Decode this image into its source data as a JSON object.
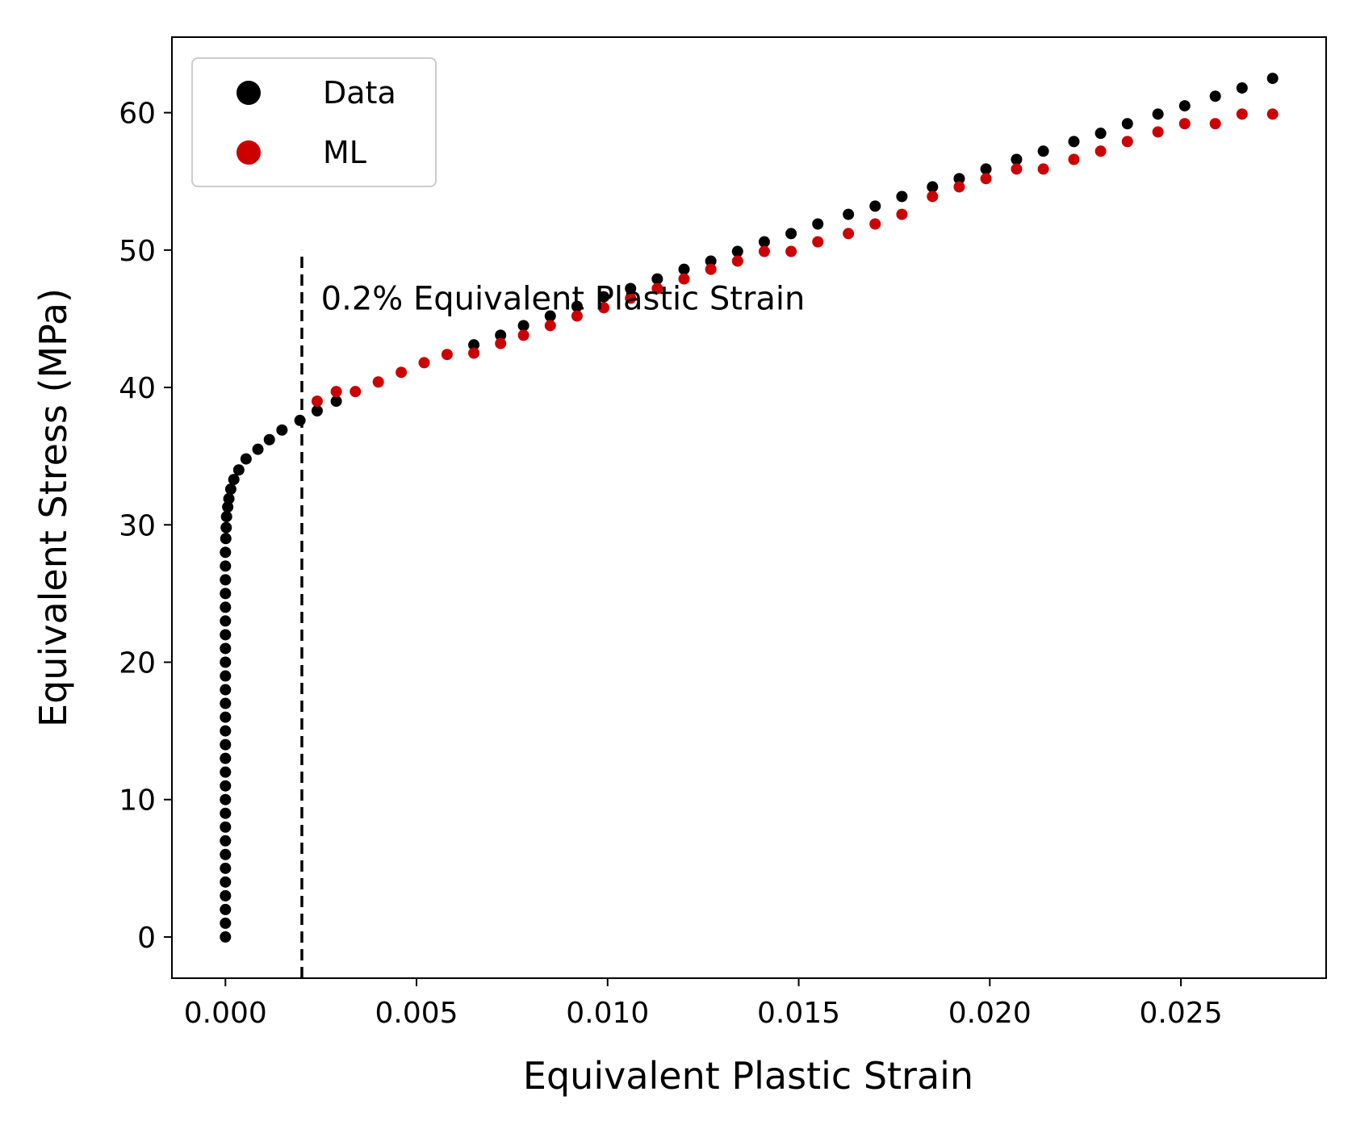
{
  "chart_data": {
    "type": "scatter",
    "xlabel": "Equivalent Plastic Strain",
    "ylabel": "Equivalent Stress (MPa)",
    "xlim": [
      -0.0014,
      0.0288
    ],
    "ylim": [
      -3,
      65.5
    ],
    "x_ticks": [
      0.0,
      0.005,
      0.01,
      0.015,
      0.02,
      0.025
    ],
    "x_tick_labels": [
      "0.000",
      "0.005",
      "0.010",
      "0.015",
      "0.020",
      "0.025"
    ],
    "y_ticks": [
      0,
      10,
      20,
      30,
      40,
      50,
      60
    ],
    "y_tick_labels": [
      "0",
      "10",
      "20",
      "30",
      "40",
      "50",
      "60"
    ],
    "grid": false,
    "legend_position": "top-left",
    "reference_line": {
      "x": 0.002,
      "y_range": [
        -3,
        50
      ],
      "style": "dashed",
      "color": "#000000"
    },
    "annotation": {
      "text": "0.2% Equivalent Plastic Strain",
      "x": 0.0025,
      "y": 46.5
    },
    "series": [
      {
        "name": "Data",
        "color": "#000000",
        "points": [
          [
            0.0,
            0.0
          ],
          [
            0.0,
            1.0
          ],
          [
            0.0,
            2.0
          ],
          [
            0.0,
            3.0
          ],
          [
            0.0,
            4.0
          ],
          [
            0.0,
            5.0
          ],
          [
            0.0,
            6.0
          ],
          [
            0.0,
            7.0
          ],
          [
            0.0,
            8.0
          ],
          [
            0.0,
            9.0
          ],
          [
            0.0,
            10.0
          ],
          [
            0.0,
            11.0
          ],
          [
            0.0,
            12.0
          ],
          [
            0.0,
            13.0
          ],
          [
            0.0,
            14.0
          ],
          [
            0.0,
            15.0
          ],
          [
            0.0,
            16.0
          ],
          [
            0.0,
            17.0
          ],
          [
            0.0,
            18.0
          ],
          [
            0.0,
            19.0
          ],
          [
            0.0,
            20.0
          ],
          [
            0.0,
            21.0
          ],
          [
            0.0,
            22.0
          ],
          [
            0.0,
            23.0
          ],
          [
            0.0,
            24.0
          ],
          [
            0.0,
            25.0
          ],
          [
            0.0,
            26.0
          ],
          [
            0.0,
            27.0
          ],
          [
            0.0,
            28.0
          ],
          [
            1e-05,
            29.0
          ],
          [
            2e-05,
            29.8
          ],
          [
            3e-05,
            30.6
          ],
          [
            6e-05,
            31.3
          ],
          [
            9e-05,
            31.9
          ],
          [
            0.00014,
            32.6
          ],
          [
            0.00022,
            33.3
          ],
          [
            0.00035,
            34.0
          ],
          [
            0.00054,
            34.8
          ],
          [
            0.00085,
            35.5
          ],
          [
            0.00115,
            36.2
          ],
          [
            0.00148,
            36.9
          ],
          [
            0.00195,
            37.6
          ],
          [
            0.0024,
            38.3
          ],
          [
            0.0029,
            39.0
          ],
          [
            0.0065,
            43.1
          ],
          [
            0.0072,
            43.8
          ],
          [
            0.0078,
            44.5
          ],
          [
            0.0085,
            45.2
          ],
          [
            0.0092,
            45.9
          ],
          [
            0.0099,
            46.6
          ],
          [
            0.0106,
            47.2
          ],
          [
            0.0113,
            47.9
          ],
          [
            0.012,
            48.6
          ],
          [
            0.0127,
            49.2
          ],
          [
            0.0134,
            49.9
          ],
          [
            0.0141,
            50.6
          ],
          [
            0.0148,
            51.2
          ],
          [
            0.0155,
            51.9
          ],
          [
            0.0163,
            52.6
          ],
          [
            0.017,
            53.2
          ],
          [
            0.0177,
            53.9
          ],
          [
            0.0185,
            54.6
          ],
          [
            0.0192,
            55.2
          ],
          [
            0.0199,
            55.9
          ],
          [
            0.0207,
            56.6
          ],
          [
            0.0214,
            57.2
          ],
          [
            0.0222,
            57.9
          ],
          [
            0.0229,
            58.5
          ],
          [
            0.0236,
            59.2
          ],
          [
            0.0244,
            59.9
          ],
          [
            0.0251,
            60.5
          ],
          [
            0.0259,
            61.2
          ],
          [
            0.0266,
            61.8
          ],
          [
            0.0274,
            62.5
          ]
        ]
      },
      {
        "name": "ML",
        "color": "#cc0000",
        "points": [
          [
            0.0024,
            39.0
          ],
          [
            0.0029,
            39.7
          ],
          [
            0.0034,
            39.7
          ],
          [
            0.004,
            40.4
          ],
          [
            0.0046,
            41.1
          ],
          [
            0.0052,
            41.8
          ],
          [
            0.0058,
            42.4
          ],
          [
            0.0065,
            42.5
          ],
          [
            0.0072,
            43.2
          ],
          [
            0.0078,
            43.8
          ],
          [
            0.0085,
            44.5
          ],
          [
            0.0092,
            45.2
          ],
          [
            0.0099,
            45.8
          ],
          [
            0.0106,
            46.5
          ],
          [
            0.0113,
            47.2
          ],
          [
            0.012,
            47.9
          ],
          [
            0.0127,
            48.6
          ],
          [
            0.0134,
            49.2
          ],
          [
            0.0141,
            49.9
          ],
          [
            0.0148,
            49.9
          ],
          [
            0.0155,
            50.6
          ],
          [
            0.0163,
            51.2
          ],
          [
            0.017,
            51.9
          ],
          [
            0.0177,
            52.6
          ],
          [
            0.0185,
            53.9
          ],
          [
            0.0192,
            54.6
          ],
          [
            0.0199,
            55.2
          ],
          [
            0.0207,
            55.9
          ],
          [
            0.0214,
            55.9
          ],
          [
            0.0222,
            56.6
          ],
          [
            0.0229,
            57.2
          ],
          [
            0.0236,
            57.9
          ],
          [
            0.0244,
            58.6
          ],
          [
            0.0251,
            59.2
          ],
          [
            0.0259,
            59.2
          ],
          [
            0.0266,
            59.9
          ],
          [
            0.0274,
            59.9
          ]
        ]
      }
    ]
  }
}
